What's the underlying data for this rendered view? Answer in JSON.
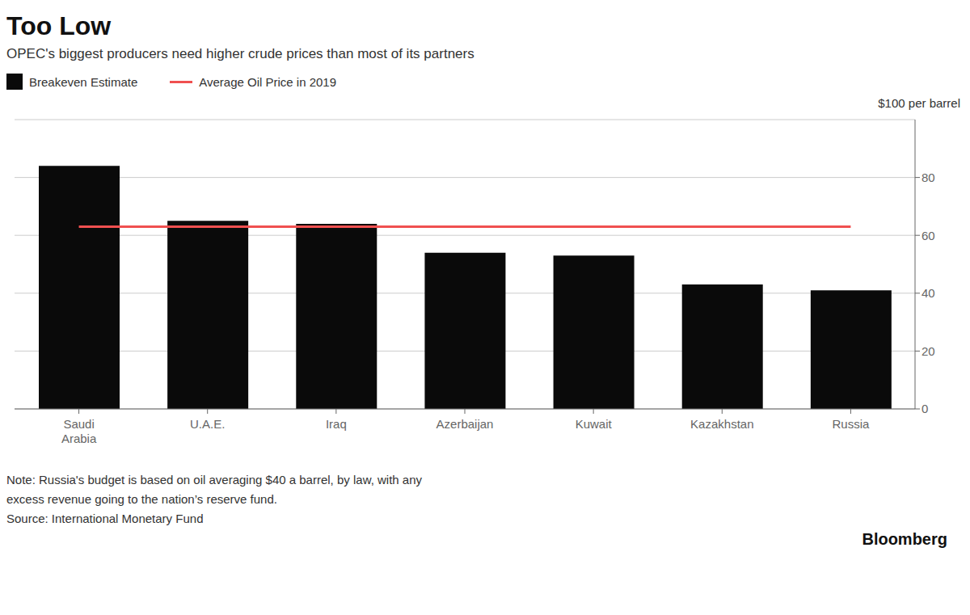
{
  "chart_data": {
    "type": "bar",
    "title": "Too Low",
    "subtitle": "OPEC's biggest producers need higher crude prices than most of its partners",
    "annotation": "$100 per barrel",
    "notes": [
      "Note: Russia's budget is based on oil averaging $40 a barrel, by law, with any",
      "excess revenue going to the nation’s reserve fund.",
      "Source: International Monetary Fund"
    ],
    "source": "Bloomberg",
    "categories": [
      "Saudi\nArabia",
      "U.A.E.",
      "Iraq",
      "Azerbaijan",
      "Kuwait",
      "Kazakhstan",
      "Russia"
    ],
    "series": [
      {
        "name": "Breakeven Estimate",
        "type": "bar",
        "color": "#0a0a0a",
        "values": [
          84,
          65,
          64,
          54,
          53,
          43,
          41
        ]
      },
      {
        "name": "Average Oil Price in 2019",
        "type": "line",
        "color": "#f05050",
        "values": [
          63,
          63,
          63,
          63,
          63,
          63,
          63
        ]
      }
    ],
    "ylim": [
      0,
      100
    ],
    "yticks": [
      0,
      20,
      40,
      60,
      80
    ],
    "grid": true
  }
}
